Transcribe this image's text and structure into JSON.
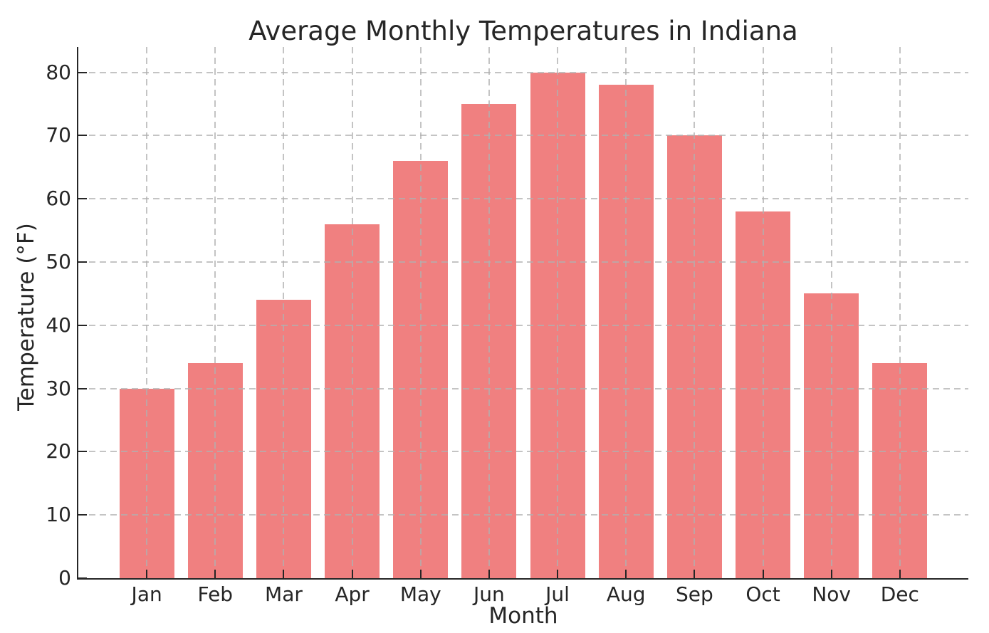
{
  "chart_data": {
    "type": "bar",
    "title": "Average Monthly Temperatures in Indiana",
    "xlabel": "Month",
    "ylabel": "Temperature (°F)",
    "categories": [
      "Jan",
      "Feb",
      "Mar",
      "Apr",
      "May",
      "Jun",
      "Jul",
      "Aug",
      "Sep",
      "Oct",
      "Nov",
      "Dec"
    ],
    "values": [
      30,
      34,
      44,
      56,
      66,
      75,
      80,
      78,
      70,
      58,
      45,
      34
    ],
    "yticks": [
      0,
      10,
      20,
      30,
      40,
      50,
      60,
      70,
      80
    ],
    "ylim": [
      0,
      84
    ],
    "bar_width_fraction": 0.8,
    "legend": "none",
    "grid": "dashed, both axes, drawn above bars",
    "colors": {
      "bar": "#F08080",
      "grid": "rgba(176,176,176,0.75)",
      "axis": "#262626",
      "text": "#262626",
      "background": "#ffffff"
    }
  }
}
